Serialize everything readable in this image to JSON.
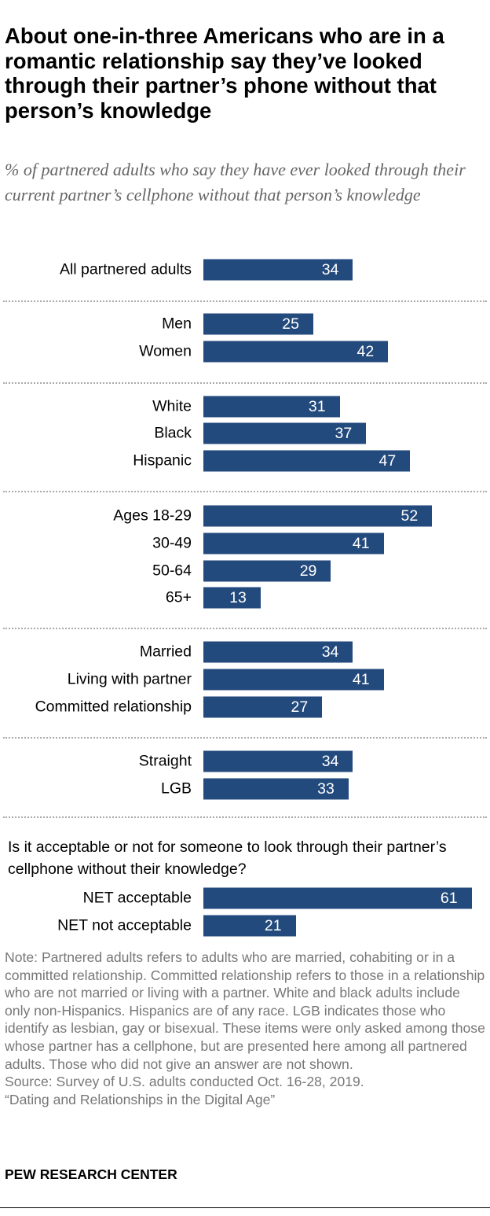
{
  "title": "About one-in-three Americans who are in a romantic relationship say they’ve looked through their partner’s phone without that person’s knowledge",
  "subtitle": "% of partnered adults who say they have ever looked through their current partner’s cellphone without that person’s knowledge",
  "question": "Is it acceptable or not for someone to look through their partner’s cellphone without their knowledge?",
  "note": "Note: Partnered adults refers to adults who are married, cohabiting or in a committed relationship. Committed relationship refers to those in a relationship who are not married or living with a partner. White and black adults include only non-Hispanics. Hispanics are of any race. LGB indicates those who identify as lesbian, gay or bisexual. These items were only asked among those whose partner has a cellphone, but are presented here among all partnered adults. Those who did not give an answer are not shown.",
  "source": "Source: Survey of U.S. adults conducted Oct. 16-28, 2019.",
  "report": "“Dating and Relationships in the Digital Age”",
  "logo": "PEW RESEARCH CENTER",
  "chart_data": {
    "type": "bar",
    "orientation": "horizontal",
    "bar_color": "#234a7d",
    "groups": [
      {
        "categories": [
          "All partnered adults"
        ],
        "values": [
          34
        ]
      },
      {
        "categories": [
          "Men",
          "Women"
        ],
        "values": [
          25,
          42
        ]
      },
      {
        "categories": [
          "White",
          "Black",
          "Hispanic"
        ],
        "values": [
          31,
          37,
          47
        ]
      },
      {
        "categories": [
          "Ages 18-29",
          "30-49",
          "50-64",
          "65+"
        ],
        "values": [
          52,
          41,
          29,
          13
        ]
      },
      {
        "categories": [
          "Married",
          "Living with partner",
          "Committed relationship"
        ],
        "values": [
          34,
          41,
          27
        ]
      },
      {
        "categories": [
          "Straight",
          "LGB"
        ],
        "values": [
          34,
          33
        ]
      },
      {
        "categories": [
          "NET acceptable",
          "NET not acceptable"
        ],
        "values": [
          61,
          21
        ]
      }
    ]
  }
}
